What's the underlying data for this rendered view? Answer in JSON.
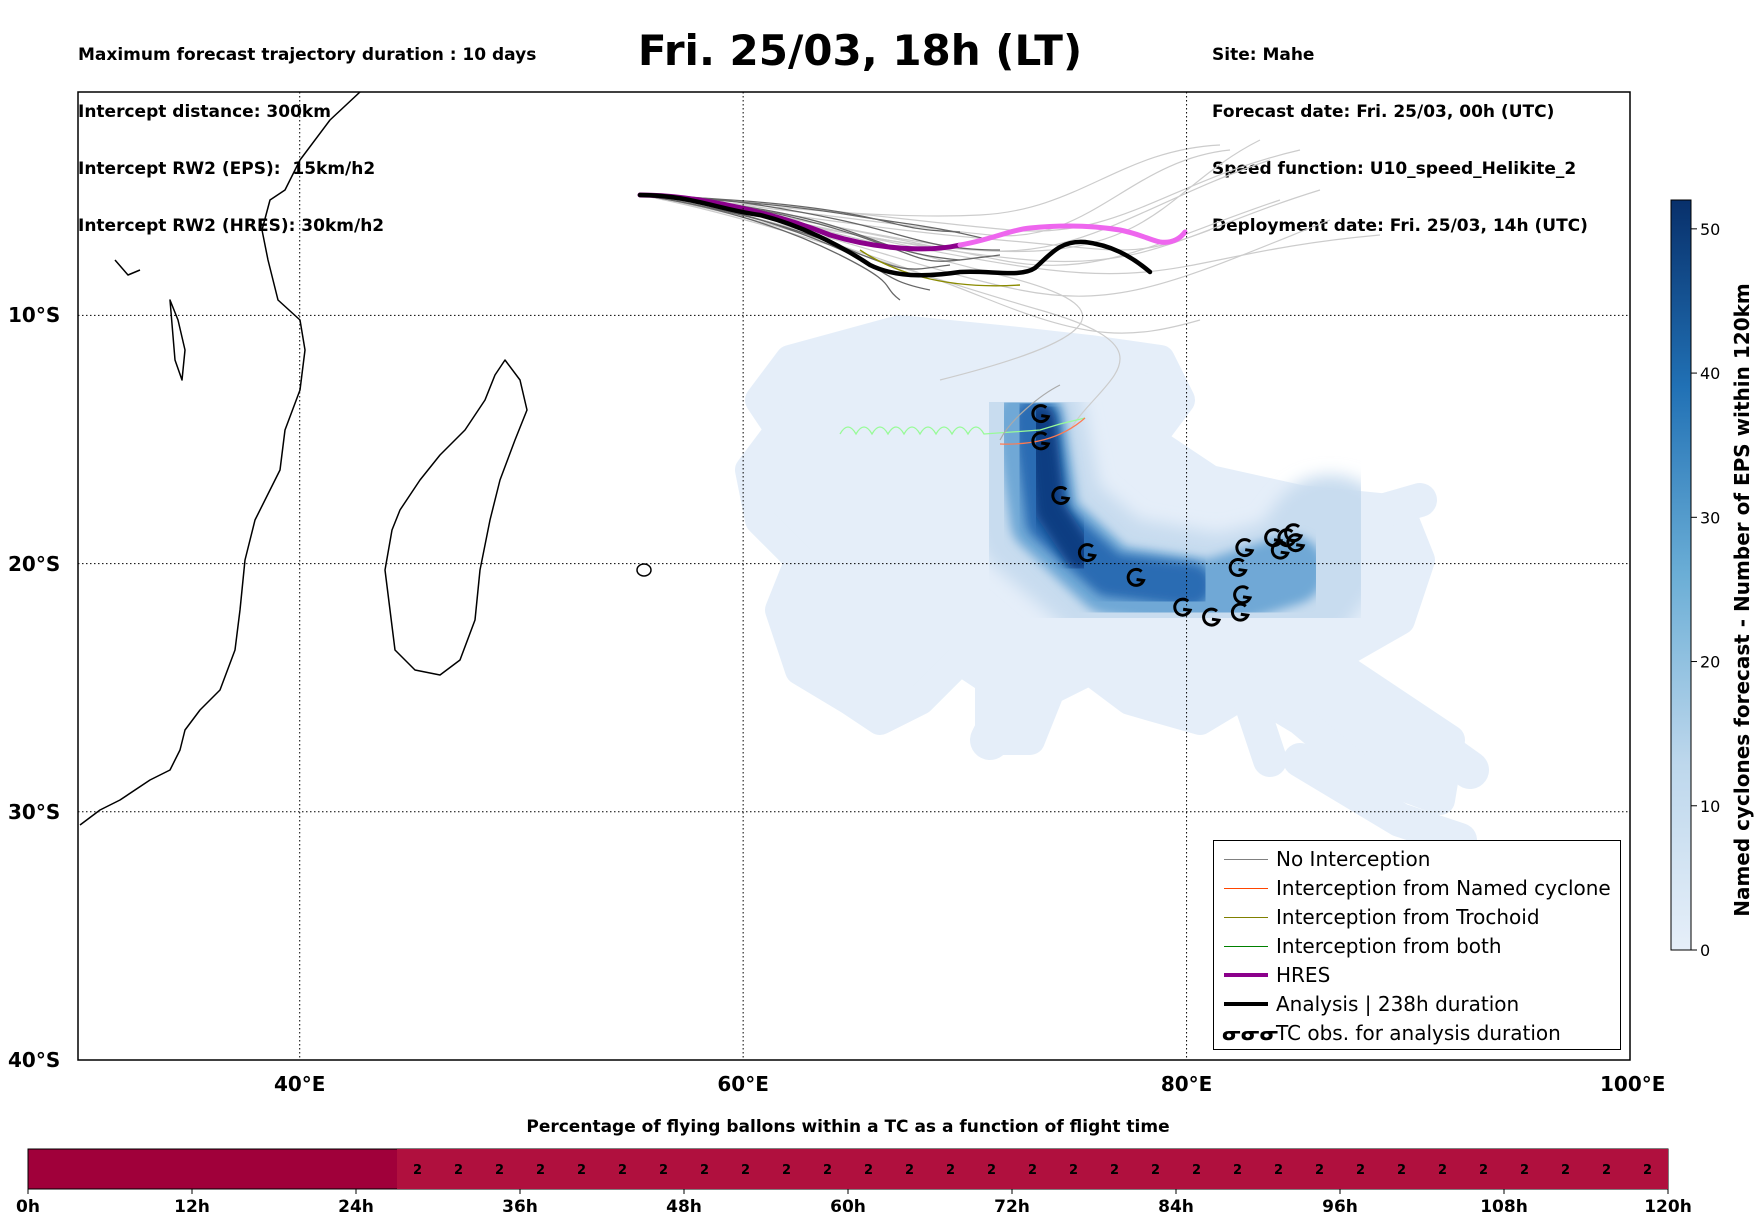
{
  "header_left": [
    "Maximum forecast trajectory duration : 10 days",
    "Intercept distance: 300km",
    "Intercept RW2 (EPS):  15km/h2",
    "Intercept RW2 (HRES): 30km/h2"
  ],
  "header_right": [
    "Site: Mahe",
    "Forecast date: Fri. 25/03, 00h (UTC)",
    "Speed function: U10_speed_Helikite_2",
    "Deployment date: Fri. 25/03, 14h (UTC)"
  ],
  "title": "Fri. 25/03, 18h (LT)",
  "map": {
    "lon_range": [
      30,
      100
    ],
    "lat_range": [
      -40,
      -1
    ],
    "lon_ticks": [
      {
        "value": 40,
        "label": "40°E"
      },
      {
        "value": 60,
        "label": "60°E"
      },
      {
        "value": 80,
        "label": "80°E"
      },
      {
        "value": 100,
        "label": "100°E"
      }
    ],
    "lat_ticks": [
      {
        "value": -10,
        "label": "10°S"
      },
      {
        "value": -20,
        "label": "20°S"
      },
      {
        "value": -30,
        "label": "30°S"
      },
      {
        "value": -40,
        "label": "40°S"
      }
    ],
    "tc_obs": [
      [
        73.4,
        -14.0
      ],
      [
        73.4,
        -15.1
      ],
      [
        74.3,
        -17.3
      ],
      [
        75.5,
        -19.6
      ],
      [
        77.7,
        -20.6
      ],
      [
        79.8,
        -21.8
      ],
      [
        81.1,
        -22.2
      ],
      [
        82.4,
        -22.0
      ],
      [
        82.5,
        -21.3
      ],
      [
        82.3,
        -20.2
      ],
      [
        82.6,
        -19.4
      ],
      [
        83.9,
        -19.0
      ],
      [
        84.2,
        -19.5
      ],
      [
        84.5,
        -19.0
      ],
      [
        84.8,
        -18.8
      ],
      [
        84.9,
        -19.2
      ]
    ],
    "site": [
      55.5,
      -4.6
    ],
    "colors": {
      "hres_early": "#8b008b",
      "hres_late": "#ee66ee",
      "analysis": "#000000",
      "eps": "#666666",
      "eps_light": "#cccccc",
      "trochoid": "#8b8b00",
      "named": "#ff5a1f",
      "both": "#98fb98"
    }
  },
  "legend": [
    {
      "label": "No Interception",
      "color": "#808080",
      "width": 1,
      "glyph": ""
    },
    {
      "label": "Interception from Named cyclone",
      "color": "#ff4500",
      "width": 1,
      "glyph": ""
    },
    {
      "label": "Interception from Trochoid",
      "color": "#808000",
      "width": 1,
      "glyph": ""
    },
    {
      "label": "Interception from both",
      "color": "#008000",
      "width": 1,
      "glyph": ""
    },
    {
      "label": "HRES",
      "color": "#8b008b",
      "width": 4,
      "glyph": ""
    },
    {
      "label": "Analysis | 238h duration",
      "color": "#000000",
      "width": 4,
      "glyph": ""
    },
    {
      "label": "TC obs. for analysis duration",
      "color": "#000000",
      "width": 0,
      "glyph": "ᓂᓂᓂ"
    }
  ],
  "colorbar": {
    "label": "Named cyclones forecast - Number of EPS within 120km",
    "ticks": [
      0,
      10,
      20,
      30,
      40,
      50
    ],
    "max": 52,
    "color_low": "#e6eff9",
    "color_high": "#08306b"
  },
  "bottom": {
    "title": "Percentage of flying ballons within a TC as a function of flight time",
    "ticks": [
      "0h",
      "12h",
      "24h",
      "36h",
      "48h",
      "60h",
      "72h",
      "84h",
      "96h",
      "108h",
      "120h"
    ],
    "cell_value": "2",
    "cell_count": 31,
    "color_zero": "#a0003a",
    "color_value": "#b0103e"
  }
}
